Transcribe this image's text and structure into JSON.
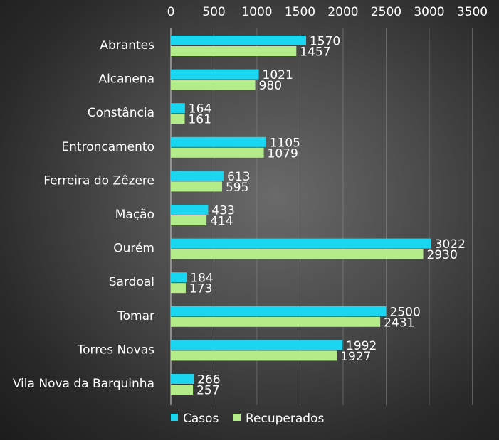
{
  "chart_data": {
    "type": "bar",
    "orientation": "horizontal",
    "title": "",
    "xlabel": "",
    "ylabel": "",
    "xlim": [
      0,
      3500
    ],
    "x_ticks": [
      0,
      500,
      1000,
      1500,
      2000,
      2500,
      3000,
      3500
    ],
    "x_axis_position": "top",
    "grid": true,
    "legend_position": "bottom-left",
    "categories": [
      "Abrantes",
      "Alcanena",
      "Constância",
      "Entroncamento",
      "Ferreira do Zêzere",
      "Mação",
      "Ourém",
      "Sardoal",
      "Tomar",
      "Torres Novas",
      "Vila Nova da Barquinha"
    ],
    "series": [
      {
        "name": "Casos",
        "color": "#1ad6f0",
        "values": [
          1570,
          1021,
          164,
          1105,
          613,
          433,
          3022,
          184,
          2500,
          1992,
          266
        ]
      },
      {
        "name": "Recuperados",
        "color": "#b5ec8a",
        "values": [
          1457,
          980,
          161,
          1079,
          595,
          414,
          2930,
          173,
          2431,
          1927,
          257
        ]
      }
    ]
  }
}
